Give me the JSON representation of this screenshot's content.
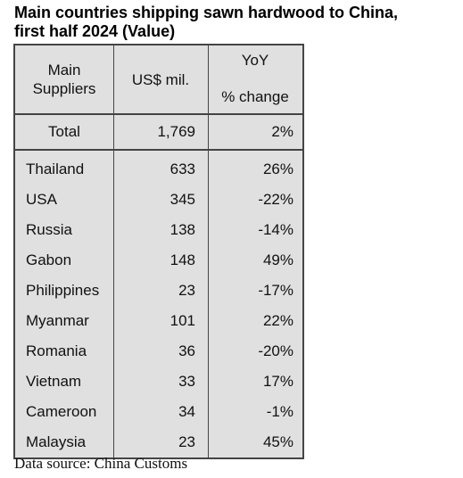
{
  "title_line1": "Main countries shipping sawn hardwood to China,",
  "title_line2": "first half 2024 (Value)",
  "chart_data": {
    "type": "table",
    "columns": [
      "Main Suppliers",
      "US$ mil.",
      "YoY % change"
    ],
    "header": {
      "col1_line1": "Main",
      "col1_line2": "Suppliers",
      "col2": "US$ mil.",
      "col3_line1": "YoY",
      "col3_line2": "% change"
    },
    "total": {
      "label": "Total",
      "value": "1,769",
      "change": "2%"
    },
    "rows": [
      {
        "supplier": "Thailand",
        "value": "633",
        "change": "26%"
      },
      {
        "supplier": "USA",
        "value": "345",
        "change": "-22%"
      },
      {
        "supplier": "Russia",
        "value": "138",
        "change": "-14%"
      },
      {
        "supplier": "Gabon",
        "value": "148",
        "change": "49%"
      },
      {
        "supplier": "Philippines",
        "value": "23",
        "change": "-17%"
      },
      {
        "supplier": "Myanmar",
        "value": "101",
        "change": "22%"
      },
      {
        "supplier": "Romania",
        "value": "36",
        "change": "-20%"
      },
      {
        "supplier": "Vietnam",
        "value": "33",
        "change": "17%"
      },
      {
        "supplier": "Cameroon",
        "value": "34",
        "change": "-1%"
      },
      {
        "supplier": "Malaysia",
        "value": "23",
        "change": "45%"
      }
    ]
  },
  "source": "Data source: China Customs"
}
